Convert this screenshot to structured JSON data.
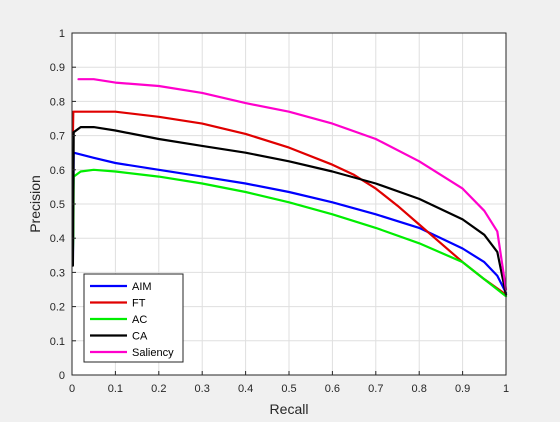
{
  "chart_data": {
    "type": "line",
    "title": "",
    "xlabel": "Recall",
    "ylabel": "Precision",
    "xlim": [
      0,
      1
    ],
    "ylim": [
      0,
      1
    ],
    "x_ticks": [
      "0",
      "0.1",
      "0.2",
      "0.3",
      "0.4",
      "0.5",
      "0.6",
      "0.7",
      "0.8",
      "0.9",
      "1"
    ],
    "y_ticks": [
      "0",
      "0.1",
      "0.2",
      "0.3",
      "0.4",
      "0.5",
      "0.6",
      "0.7",
      "0.8",
      "0.9",
      "1"
    ],
    "grid": true,
    "legend_position": "bottom-left",
    "series": [
      {
        "name": "AIM",
        "color": "#0000ff",
        "points": [
          [
            0.002,
            0.33
          ],
          [
            0.003,
            0.5
          ],
          [
            0.004,
            0.65
          ],
          [
            0.05,
            0.635
          ],
          [
            0.1,
            0.62
          ],
          [
            0.2,
            0.6
          ],
          [
            0.3,
            0.58
          ],
          [
            0.4,
            0.56
          ],
          [
            0.5,
            0.535
          ],
          [
            0.6,
            0.505
          ],
          [
            0.7,
            0.47
          ],
          [
            0.8,
            0.43
          ],
          [
            0.9,
            0.37
          ],
          [
            0.95,
            0.33
          ],
          [
            0.98,
            0.29
          ],
          [
            1.0,
            0.24
          ]
        ]
      },
      {
        "name": "FT",
        "color": "#e00000",
        "points": [
          [
            0.002,
            0.7
          ],
          [
            0.003,
            0.77
          ],
          [
            0.05,
            0.77
          ],
          [
            0.1,
            0.77
          ],
          [
            0.2,
            0.755
          ],
          [
            0.3,
            0.735
          ],
          [
            0.4,
            0.705
          ],
          [
            0.5,
            0.665
          ],
          [
            0.6,
            0.615
          ],
          [
            0.65,
            0.585
          ],
          [
            0.7,
            0.545
          ],
          [
            0.75,
            0.495
          ],
          [
            0.8,
            0.44
          ],
          [
            0.85,
            0.385
          ],
          [
            0.9,
            0.33
          ],
          [
            0.95,
            0.28
          ],
          [
            1.0,
            0.235
          ]
        ]
      },
      {
        "name": "AC",
        "color": "#00ee00",
        "points": [
          [
            0.002,
            0.36
          ],
          [
            0.003,
            0.41
          ],
          [
            0.004,
            0.58
          ],
          [
            0.02,
            0.595
          ],
          [
            0.05,
            0.6
          ],
          [
            0.1,
            0.595
          ],
          [
            0.2,
            0.58
          ],
          [
            0.3,
            0.56
          ],
          [
            0.4,
            0.535
          ],
          [
            0.5,
            0.505
          ],
          [
            0.6,
            0.47
          ],
          [
            0.7,
            0.43
          ],
          [
            0.8,
            0.385
          ],
          [
            0.9,
            0.33
          ],
          [
            0.95,
            0.28
          ],
          [
            1.0,
            0.23
          ]
        ]
      },
      {
        "name": "CA",
        "color": "#000000",
        "points": [
          [
            0.002,
            0.32
          ],
          [
            0.003,
            0.5
          ],
          [
            0.004,
            0.71
          ],
          [
            0.02,
            0.725
          ],
          [
            0.05,
            0.725
          ],
          [
            0.1,
            0.715
          ],
          [
            0.2,
            0.69
          ],
          [
            0.3,
            0.67
          ],
          [
            0.4,
            0.65
          ],
          [
            0.5,
            0.625
          ],
          [
            0.6,
            0.595
          ],
          [
            0.7,
            0.56
          ],
          [
            0.8,
            0.515
          ],
          [
            0.9,
            0.455
          ],
          [
            0.95,
            0.41
          ],
          [
            0.98,
            0.36
          ],
          [
            1.0,
            0.235
          ]
        ]
      },
      {
        "name": "Saliency",
        "color": "#ff00cc",
        "points": [
          [
            0.015,
            0.865
          ],
          [
            0.05,
            0.865
          ],
          [
            0.1,
            0.855
          ],
          [
            0.2,
            0.845
          ],
          [
            0.3,
            0.825
          ],
          [
            0.4,
            0.795
          ],
          [
            0.5,
            0.77
          ],
          [
            0.6,
            0.735
          ],
          [
            0.7,
            0.69
          ],
          [
            0.8,
            0.625
          ],
          [
            0.9,
            0.545
          ],
          [
            0.95,
            0.48
          ],
          [
            0.98,
            0.42
          ],
          [
            1.0,
            0.25
          ]
        ]
      }
    ]
  }
}
